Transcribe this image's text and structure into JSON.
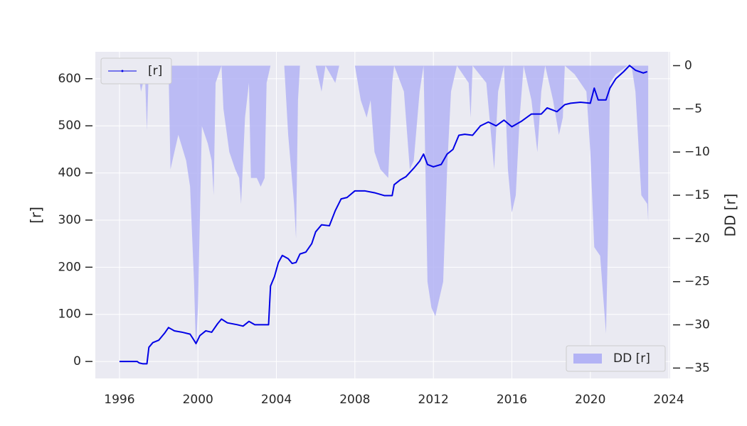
{
  "chart_data": {
    "type": "line",
    "ylabel": "[r]",
    "y2label": "DD [r]",
    "xlim": [
      1994.77,
      2024.07
    ],
    "xticks": [
      1996,
      2000,
      2004,
      2008,
      2012,
      2016,
      2020,
      2024
    ],
    "ylim": [
      -36,
      657
    ],
    "yticks": [
      0,
      100,
      200,
      300,
      400,
      500,
      600
    ],
    "y2lim": [
      -36.2,
      1.6
    ],
    "y2ticks": [
      0,
      {
        "value": -5,
        "label": "−5"
      },
      {
        "value": -10,
        "label": "−10"
      },
      {
        "value": -15,
        "label": "−15"
      },
      {
        "value": -20,
        "label": "−20"
      },
      {
        "value": -25,
        "label": "−25"
      },
      {
        "value": -30,
        "label": "−30"
      },
      {
        "value": -35,
        "label": "−35"
      }
    ],
    "grid": true,
    "series": [
      {
        "name": "[r]",
        "type": "line",
        "color": "#0000e6",
        "legend": "upper left",
        "x": [
          1996.0,
          1996.9,
          1997.0,
          1997.2,
          1997.4,
          1997.5,
          1997.7,
          1998.0,
          1998.3,
          1998.5,
          1998.8,
          1999.2,
          1999.6,
          1999.8,
          1999.9,
          2000.1,
          2000.4,
          2000.7,
          2001.0,
          2001.2,
          2001.5,
          2002.0,
          2002.3,
          2002.6,
          2002.9,
          2003.3,
          2003.6,
          2003.7,
          2003.9,
          2004.1,
          2004.3,
          2004.6,
          2004.8,
          2005.0,
          2005.2,
          2005.5,
          2005.8,
          2006.0,
          2006.3,
          2006.7,
          2007.0,
          2007.3,
          2007.6,
          2008.0,
          2008.5,
          2009.0,
          2009.5,
          2009.9,
          2010.0,
          2010.3,
          2010.6,
          2011.0,
          2011.3,
          2011.5,
          2011.7,
          2012.0,
          2012.4,
          2012.7,
          2013.0,
          2013.3,
          2013.6,
          2014.0,
          2014.4,
          2014.8,
          2015.2,
          2015.6,
          2016.0,
          2016.5,
          2017.0,
          2017.5,
          2017.8,
          2018.3,
          2018.7,
          2019.0,
          2019.5,
          2020.0,
          2020.2,
          2020.4,
          2020.8,
          2021.0,
          2021.3,
          2021.7,
          2022.0,
          2022.3,
          2022.7,
          2022.9
        ],
        "values": [
          0,
          0,
          -3,
          -5,
          -5,
          30,
          40,
          45,
          60,
          72,
          65,
          62,
          58,
          45,
          38,
          55,
          65,
          62,
          80,
          90,
          82,
          78,
          75,
          85,
          78,
          78,
          78,
          160,
          180,
          210,
          225,
          218,
          208,
          210,
          228,
          232,
          250,
          275,
          290,
          288,
          320,
          345,
          348,
          362,
          362,
          358,
          352,
          352,
          375,
          385,
          392,
          410,
          425,
          440,
          418,
          413,
          418,
          440,
          450,
          480,
          482,
          480,
          500,
          508,
          500,
          512,
          498,
          510,
          525,
          525,
          538,
          530,
          545,
          548,
          550,
          548,
          580,
          555,
          555,
          580,
          600,
          615,
          628,
          618,
          612,
          615
        ]
      },
      {
        "name": "DD [r]",
        "type": "area",
        "axis": "y2",
        "color": "#b3b3f5",
        "legend": "lower right",
        "x": [
          1996.0,
          1996.9,
          1997.0,
          1997.1,
          1997.3,
          1997.4,
          1997.5,
          1998.5,
          1998.6,
          1998.8,
          1999.0,
          1999.4,
          1999.6,
          1999.8,
          1999.9,
          2000.0,
          2000.2,
          2000.5,
          2000.7,
          2000.8,
          2000.9,
          2001.2,
          2001.3,
          2001.6,
          2001.9,
          2002.1,
          2002.2,
          2002.4,
          2002.6,
          2002.7,
          2003.0,
          2003.2,
          2003.4,
          2003.5,
          2003.7,
          2004.4,
          2004.6,
          2004.9,
          2005.0,
          2005.1,
          2005.2,
          2006.0,
          2006.3,
          2006.5,
          2007.0,
          2007.2,
          2008.0,
          2008.3,
          2008.6,
          2008.8,
          2009.0,
          2009.3,
          2009.7,
          2009.9,
          2010.0,
          2010.5,
          2010.8,
          2011.0,
          2011.3,
          2011.5,
          2011.7,
          2011.9,
          2012.1,
          2012.3,
          2012.5,
          2012.7,
          2012.9,
          2013.2,
          2013.8,
          2013.9,
          2014.0,
          2014.7,
          2014.9,
          2015.1,
          2015.3,
          2015.6,
          2015.8,
          2016.0,
          2016.2,
          2016.4,
          2016.6,
          2017.0,
          2017.3,
          2017.5,
          2017.7,
          2018.1,
          2018.4,
          2018.6,
          2018.7,
          2019.2,
          2019.8,
          2020.0,
          2020.2,
          2020.5,
          2020.7,
          2020.8,
          2020.9,
          2021.0,
          2021.3,
          2021.9,
          2022.1,
          2022.3,
          2022.6,
          2022.9,
          2022.95
        ],
        "values": [
          0,
          0,
          -1.5,
          -3,
          -1,
          -7.5,
          0,
          0,
          -12,
          -10,
          -8,
          -11,
          -14,
          -25,
          -33,
          -28,
          -7,
          -9,
          -11,
          -15,
          -2,
          0,
          -5,
          -10,
          -12,
          -13,
          -16,
          -6,
          -2,
          -13,
          -13,
          -14,
          -13,
          -2,
          0,
          0,
          -8,
          -16,
          -20,
          -4,
          0,
          0,
          -3,
          0,
          -2,
          0,
          0,
          -4,
          -6,
          -4,
          -10,
          -12,
          -13,
          -2,
          0,
          -3,
          -12,
          -11,
          -3,
          0,
          -25,
          -28,
          -29,
          -27,
          -25,
          -12,
          -3,
          0,
          -2,
          -6,
          0,
          -2,
          -7,
          -12,
          -3,
          0,
          -12,
          -17,
          -15,
          -6,
          0,
          -4,
          -10,
          -3,
          0,
          -4,
          -8,
          -6,
          0,
          -1,
          -3,
          -10,
          -21,
          -22,
          -28,
          -31,
          -20,
          -2,
          -1,
          0,
          0,
          -3,
          -15,
          -16,
          -18
        ]
      }
    ]
  }
}
